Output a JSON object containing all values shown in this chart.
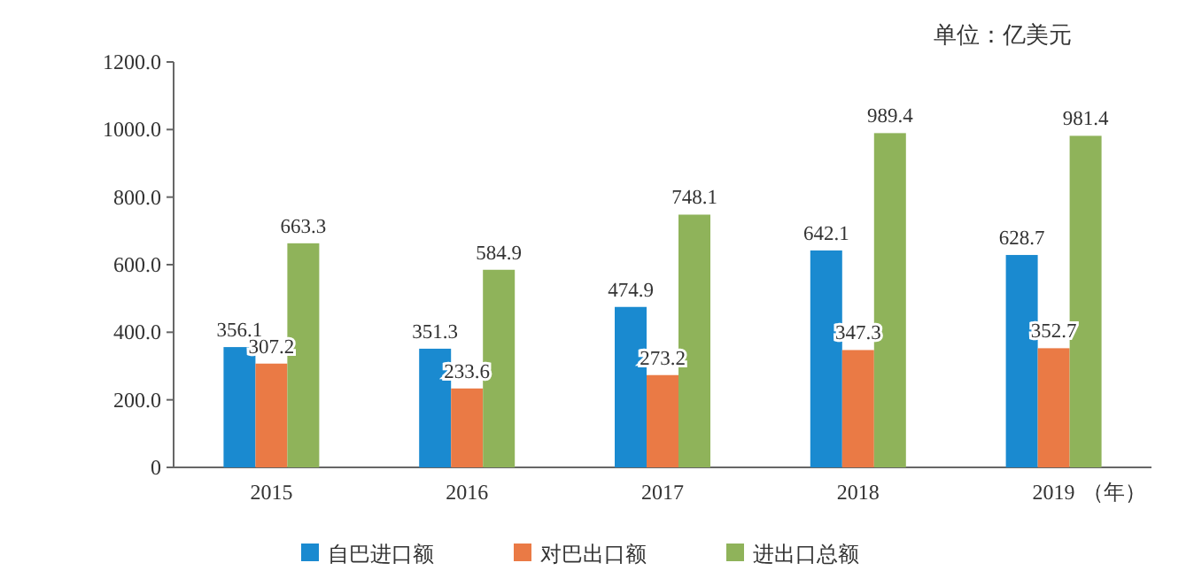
{
  "chart_data": {
    "type": "bar",
    "categories": [
      "2015",
      "2016",
      "2017",
      "2018",
      "2019"
    ],
    "xlabel": "（年）",
    "annotations": [
      "单位：亿美元"
    ],
    "series": [
      {
        "name": "自巴进口额",
        "color": "#1a8ad0",
        "values": [
          356.1,
          351.3,
          474.9,
          642.1,
          628.7
        ]
      },
      {
        "name": "对巴出口额",
        "color": "#ea7a45",
        "values": [
          307.2,
          233.6,
          273.2,
          347.3,
          352.7
        ]
      },
      {
        "name": "进出口总额",
        "color": "#8fb35a",
        "values": [
          663.3,
          584.9,
          748.1,
          989.4,
          981.4
        ]
      }
    ],
    "ylim": [
      0,
      1200
    ],
    "yticks": [
      0,
      {
        "value": 200,
        "label": "200.0"
      },
      {
        "value": 400,
        "label": "400.0"
      },
      {
        "value": 600,
        "label": "600.0"
      },
      {
        "value": 800,
        "label": "800.0"
      },
      {
        "value": 1000,
        "label": "1000.0"
      },
      {
        "value": 1200,
        "label": "1200.0"
      }
    ],
    "data_labels": true,
    "legend": "bottom",
    "grid": false
  }
}
